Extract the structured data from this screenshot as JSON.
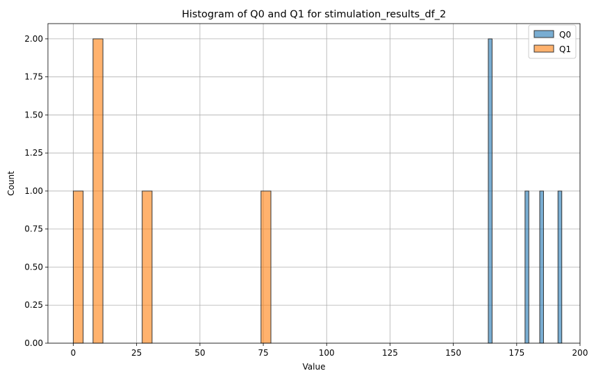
{
  "chart_data": {
    "type": "histogram",
    "title": "Histogram of Q0 and Q1 for stimulation_results_df_2",
    "xlabel": "Value",
    "ylabel": "Count",
    "xlim": [
      -10,
      200
    ],
    "ylim": [
      0,
      2.1
    ],
    "xticks": [
      "0",
      "25",
      "50",
      "75",
      "100",
      "125",
      "150",
      "175",
      "200"
    ],
    "yticks": [
      "0.00",
      "0.25",
      "0.50",
      "0.75",
      "1.00",
      "1.25",
      "1.50",
      "1.75",
      "2.00"
    ],
    "grid": true,
    "legend_position": "top-right",
    "series": [
      {
        "name": "Q0",
        "color": "#1f77b4",
        "bins": [
          {
            "x0": 163.8,
            "x1": 165.3,
            "count": 2
          },
          {
            "x0": 178.3,
            "x1": 179.8,
            "count": 1
          },
          {
            "x0": 184.1,
            "x1": 185.6,
            "count": 1
          },
          {
            "x0": 191.3,
            "x1": 192.8,
            "count": 1
          }
        ]
      },
      {
        "name": "Q1",
        "color": "#ff7f0e",
        "bins": [
          {
            "x0": 0.0,
            "x1": 3.9,
            "count": 1
          },
          {
            "x0": 7.8,
            "x1": 11.7,
            "count": 2
          },
          {
            "x0": 27.2,
            "x1": 31.1,
            "count": 1
          },
          {
            "x0": 74.1,
            "x1": 78.0,
            "count": 1
          }
        ]
      }
    ]
  }
}
